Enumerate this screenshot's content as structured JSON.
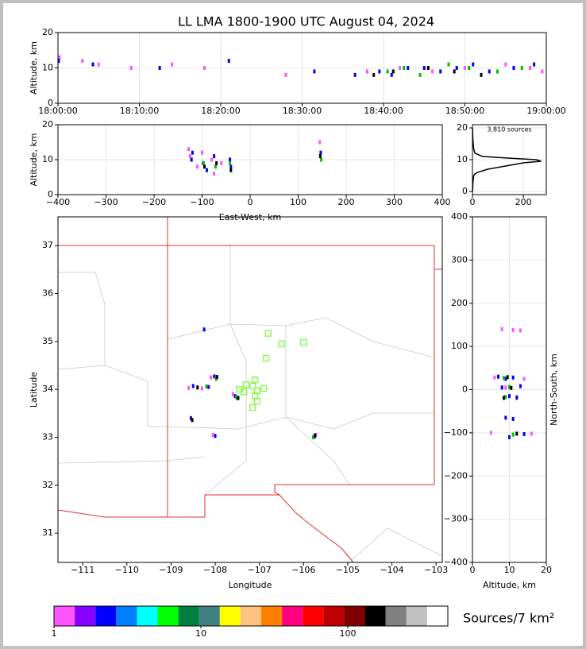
{
  "chart_data": [
    {
      "type": "scatter",
      "title": "LL LMA 1800-1900 UTC August 04, 2024",
      "ylabel": "Altitude, km",
      "grid": true,
      "xlim": [
        0,
        60
      ],
      "ylim": [
        0,
        20
      ],
      "xticks": [
        {
          "value": 0,
          "label": "18:00:00"
        },
        {
          "value": 10,
          "label": "18:10:00"
        },
        {
          "value": 20,
          "label": "18:20:00"
        },
        {
          "value": 30,
          "label": "18:30:00"
        },
        {
          "value": 40,
          "label": "18:40:00"
        },
        {
          "value": 50,
          "label": "18:50:00"
        },
        {
          "value": 60,
          "label": "19:00:00"
        }
      ],
      "yticks": [
        0,
        10,
        20
      ],
      "series": [
        {
          "color": "#ff55ff",
          "x": [
            0.2,
            3,
            5,
            9,
            14,
            18,
            28,
            38,
            42,
            46,
            50,
            55,
            58,
            59.5
          ],
          "values": [
            13,
            12,
            11,
            10,
            11,
            10,
            8,
            9,
            10,
            9,
            10,
            11,
            10,
            9
          ]
        },
        {
          "color": "#0000ff",
          "x": [
            0.1,
            4.3,
            12.5,
            21,
            31.5,
            36.5,
            39.5,
            41,
            43,
            45,
            47,
            49,
            51,
            53,
            56,
            58.5
          ],
          "values": [
            12,
            11,
            10,
            12,
            9,
            8,
            9,
            8,
            10,
            10,
            9,
            10,
            11,
            9,
            10,
            11
          ]
        },
        {
          "color": "#00c000",
          "x": [
            40.5,
            42.5,
            44.5,
            48,
            50.5,
            54,
            57
          ],
          "values": [
            9,
            10,
            8,
            11,
            10,
            9,
            10
          ]
        },
        {
          "color": "#000000",
          "x": [
            38.8,
            41.2,
            45.5,
            48.7,
            52
          ],
          "values": [
            8,
            9,
            10,
            9,
            8
          ]
        }
      ]
    },
    {
      "type": "scatter",
      "ylabel": "Altitude, km",
      "xlabel": "East-West, km",
      "grid": true,
      "xlim": [
        -400,
        400
      ],
      "ylim": [
        0,
        20
      ],
      "xticks": [
        {
          "value": -400,
          "label": "−400"
        },
        {
          "value": -300,
          "label": "−300"
        },
        {
          "value": -200,
          "label": "−200"
        },
        {
          "value": -100,
          "label": "−100"
        },
        0,
        100,
        200,
        300,
        400
      ],
      "yticks": [
        0,
        10,
        20
      ],
      "series": [
        {
          "color": "#ff55ff",
          "x": [
            -125,
            -100,
            -80,
            -60,
            145,
            -110,
            -128,
            -75
          ],
          "values": [
            11,
            12,
            10,
            9,
            15,
            8,
            13,
            6
          ]
        },
        {
          "color": "#0000ff",
          "x": [
            -122,
            -98,
            -75,
            -40,
            147,
            -90,
            -120,
            -42
          ],
          "values": [
            10,
            9,
            11,
            8,
            12,
            7,
            12,
            10
          ]
        },
        {
          "color": "#00c000",
          "x": [
            -97,
            -72,
            -42,
            148
          ],
          "values": [
            9,
            8,
            9,
            10
          ]
        },
        {
          "color": "#000000",
          "x": [
            -95,
            -70,
            -40,
            146
          ],
          "values": [
            8,
            9,
            7,
            11
          ]
        }
      ]
    },
    {
      "type": "line",
      "annotation": "3,810 sources",
      "grid": true,
      "xlim": [
        0,
        290
      ],
      "ylim": [
        -1,
        21
      ],
      "xticks": [
        0,
        200
      ],
      "yticks": [
        0,
        10,
        20
      ],
      "series": [
        {
          "color": "#000000",
          "x": [
            0,
            1,
            2,
            5,
            10,
            20,
            60,
            130,
            200,
            270,
            250,
            140,
            40,
            10,
            6,
            4,
            3,
            2,
            1,
            0
          ],
          "values": [
            0,
            1,
            3,
            5,
            5.5,
            6,
            7,
            8,
            9,
            9.5,
            10,
            10.5,
            11,
            12,
            13,
            14,
            15,
            16,
            18,
            20
          ]
        }
      ]
    },
    {
      "type": "scatter",
      "xlabel": "Longitude",
      "ylabel": "Latitude",
      "grid": false,
      "xlim": [
        -111.56,
        -102.86
      ],
      "ylim": [
        30.39,
        37.6
      ],
      "xticks": [
        {
          "value": -111,
          "label": "−111"
        },
        {
          "value": -110,
          "label": "−110"
        },
        {
          "value": -109,
          "label": "−109"
        },
        {
          "value": -108,
          "label": "−108"
        },
        {
          "value": -107,
          "label": "−107"
        },
        {
          "value": -106,
          "label": "−106"
        },
        {
          "value": -105,
          "label": "−105"
        },
        {
          "value": -104,
          "label": "−104"
        },
        {
          "value": -103,
          "label": "−103"
        }
      ],
      "yticks": [
        31,
        32,
        33,
        34,
        35,
        36,
        37
      ],
      "series": [
        {
          "color": "#0000ff",
          "x": [
            -108.25,
            -108.02,
            -108.5,
            -108.15,
            -108.55,
            -108.0,
            -107.55,
            -105.75,
            -107.5
          ],
          "values": [
            35.25,
            34.27,
            34.07,
            34.05,
            33.4,
            33.03,
            33.86,
            33.02,
            33.82
          ]
        },
        {
          "color": "#ff55ff",
          "x": [
            -108.1,
            -108.6,
            -108.3,
            -108.05,
            -107.6,
            -105.72
          ],
          "values": [
            34.25,
            34.03,
            34.02,
            33.05,
            33.9,
            33.05
          ]
        },
        {
          "color": "#00c000",
          "x": [
            -107.98,
            -108.2,
            -107.52,
            -105.78
          ],
          "values": [
            34.22,
            34.06,
            33.84,
            33.0
          ]
        },
        {
          "color": "#000000",
          "x": [
            -107.96,
            -108.4,
            -107.48,
            -108.52,
            -105.74
          ],
          "values": [
            34.26,
            34.04,
            33.82,
            33.36,
            33.04
          ]
        },
        {
          "color": "#7cfc3c",
          "marker": "square",
          "x": [
            -106.8,
            -106.5,
            -106.0,
            -106.85,
            -107.1,
            -107.15,
            -107.3,
            -107.45,
            -107.35,
            -107.05,
            -106.9,
            -107.1,
            -107.05,
            -107.15
          ],
          "values": [
            35.17,
            34.95,
            34.98,
            34.65,
            34.2,
            34.07,
            34.1,
            34.0,
            33.95,
            33.97,
            34.02,
            33.87,
            33.75,
            33.62
          ]
        }
      ]
    },
    {
      "type": "scatter",
      "xlabel": "Altitude, km",
      "ylabel": "North-South, km",
      "grid": true,
      "xlim": [
        0,
        20
      ],
      "ylim": [
        -400,
        400
      ],
      "xticks": [
        0,
        10,
        20
      ],
      "yticks": [
        {
          "value": -400,
          "label": "−400"
        },
        {
          "value": -300,
          "label": "−300"
        },
        {
          "value": -200,
          "label": "−200"
        },
        {
          "value": -100,
          "label": "−100"
        },
        0,
        100,
        200,
        300,
        400
      ],
      "series": [
        {
          "color": "#ff55ff",
          "x": [
            8,
            11,
            13,
            6,
            14,
            9,
            12,
            16,
            5
          ],
          "values": [
            140,
            138,
            137,
            28,
            25,
            5,
            -20,
            -102,
            -100
          ]
        },
        {
          "color": "#0000ff",
          "x": [
            7,
            9,
            11,
            13,
            8,
            10,
            12,
            9,
            11,
            14,
            10
          ],
          "values": [
            30,
            25,
            28,
            8,
            5,
            -15,
            -18,
            -65,
            -68,
            -103,
            -110
          ]
        },
        {
          "color": "#00c000",
          "x": [
            8.5,
            10,
            9,
            11
          ],
          "values": [
            27,
            6,
            -17,
            -104
          ]
        },
        {
          "color": "#000000",
          "x": [
            9.5,
            10.5,
            8.5,
            12
          ],
          "values": [
            29,
            4,
            -19,
            -102
          ]
        }
      ]
    },
    {
      "type": "colorbar",
      "label": "Sources/7 km²",
      "log": true,
      "xlim": [
        1,
        480
      ],
      "xticks": [
        1,
        10,
        100
      ],
      "colors": [
        "#ff55ff",
        "#8800ff",
        "#0000ff",
        "#0080ff",
        "#00ffff",
        "#00ff00",
        "#008040",
        "#408080",
        "#ffff00",
        "#ffc080",
        "#ff8000",
        "#ff0080",
        "#ff0000",
        "#c00000",
        "#800000",
        "#000000",
        "#808080",
        "#c0c0c0",
        "#ffffff"
      ]
    }
  ]
}
